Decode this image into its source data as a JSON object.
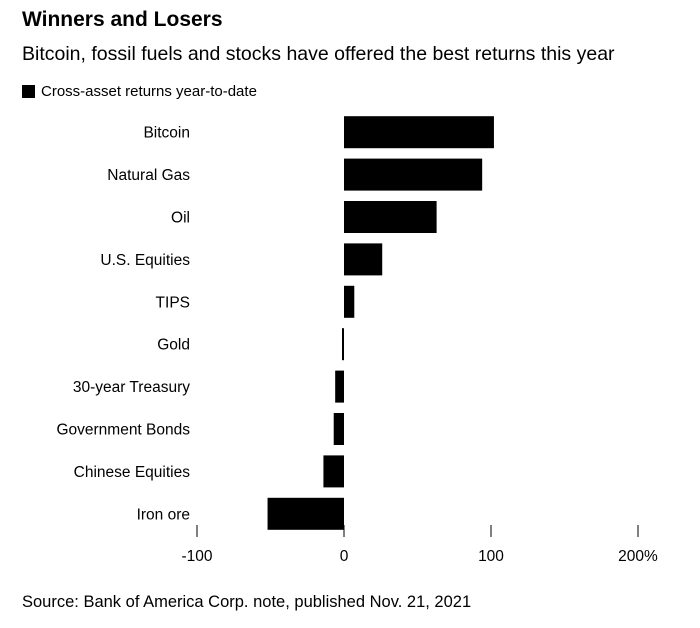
{
  "chart_data": {
    "type": "bar",
    "orientation": "horizontal",
    "title": "Winners and Losers",
    "subtitle": "Bitcoin, fossil fuels and stocks have offered the best returns this year",
    "legend": [
      {
        "label": "Cross-asset returns year-to-date",
        "color": "#000000"
      }
    ],
    "legend_position": "top-left",
    "categories": [
      "Bitcoin",
      "Natural Gas",
      "Oil",
      "U.S. Equities",
      "TIPS",
      "Gold",
      "30-year Treasury",
      "Government Bonds",
      "Chinese Equities",
      "Iron ore"
    ],
    "series": [
      {
        "name": "Cross-asset returns year-to-date",
        "values": [
          102,
          94,
          63,
          26,
          7,
          -1,
          -6,
          -7,
          -14,
          -52
        ],
        "color": "#000000"
      }
    ],
    "xlim": [
      -100,
      200
    ],
    "xticks": [
      -100,
      0,
      100,
      200
    ],
    "xtick_labels": [
      "-100",
      "0",
      "100",
      "200%"
    ],
    "grid": false,
    "source": "Source: Bank of America Corp. note, published Nov. 21, 2021"
  }
}
